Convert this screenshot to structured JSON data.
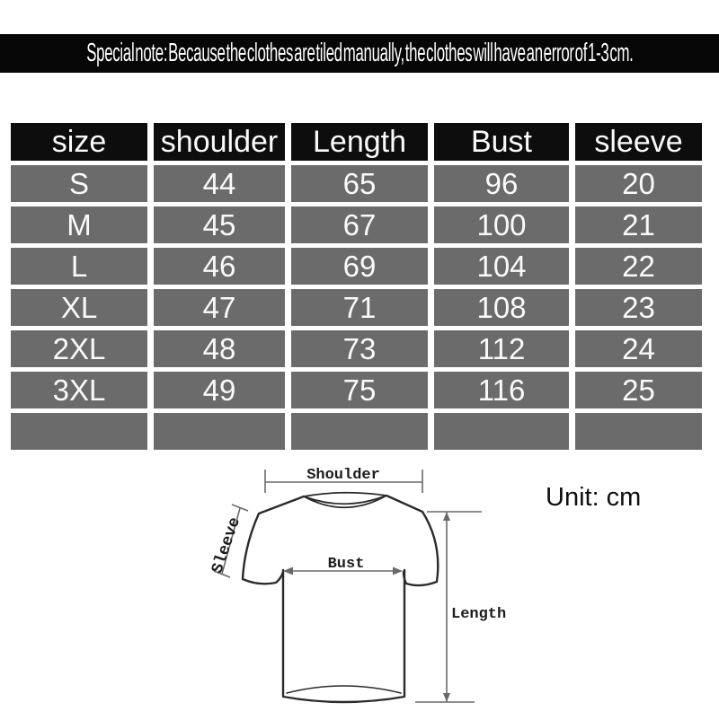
{
  "banner": {
    "text": "Special note: Because the clothes are tiled manually, the clothes will have an error of 1-3 cm."
  },
  "chart_data": {
    "type": "table",
    "columns": [
      "size",
      "shoulder",
      "Length",
      "Bust",
      "sleeve"
    ],
    "rows": [
      [
        "S",
        "44",
        "65",
        "96",
        "20"
      ],
      [
        "M",
        "45",
        "67",
        "100",
        "21"
      ],
      [
        "L",
        "46",
        "69",
        "104",
        "22"
      ],
      [
        "XL",
        "47",
        "71",
        "108",
        "23"
      ],
      [
        "2XL",
        "48",
        "73",
        "112",
        "24"
      ],
      [
        "3XL",
        "49",
        "75",
        "116",
        "25"
      ],
      [
        "",
        "",
        "",
        "",
        ""
      ]
    ],
    "unit": "cm",
    "header_bg": "#0d0d0d",
    "row_bg": "#6b6b6b",
    "text_color": "#fafafa"
  },
  "diagram": {
    "labels": {
      "shoulder": "Shoulder",
      "sleeve": "Sleeve",
      "bust": "Bust",
      "length": "Length"
    },
    "unit_label": "Unit: cm",
    "line_color": "#2b2b2b"
  }
}
